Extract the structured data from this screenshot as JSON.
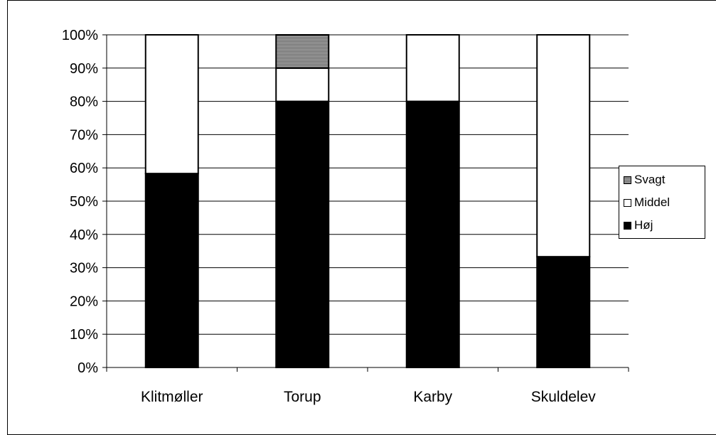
{
  "chart_data": {
    "type": "bar",
    "stacked": true,
    "normalized": true,
    "categories": [
      "Klitmøller",
      "Torup",
      "Karby",
      "Skuldelev"
    ],
    "series": [
      {
        "name": "Høj",
        "values": [
          58.3,
          80,
          80,
          33.3
        ],
        "color": "#000000"
      },
      {
        "name": "Middel",
        "values": [
          41.7,
          10,
          20,
          66.7
        ],
        "color": "#ffffff"
      },
      {
        "name": "Svagt",
        "values": [
          0,
          10,
          0,
          0
        ],
        "color": "#8c8c8c"
      }
    ],
    "ylim": [
      0,
      100
    ],
    "yticks": [
      "0%",
      "10%",
      "20%",
      "30%",
      "40%",
      "50%",
      "60%",
      "70%",
      "80%",
      "90%",
      "100%"
    ],
    "grid": true,
    "legend_position": "right",
    "title": "",
    "xlabel": "",
    "ylabel": ""
  },
  "legend": {
    "items": [
      {
        "label": "Svagt",
        "color": "#8c8c8c"
      },
      {
        "label": "Middel",
        "color": "#ffffff"
      },
      {
        "label": "Høj",
        "color": "#000000"
      }
    ]
  }
}
